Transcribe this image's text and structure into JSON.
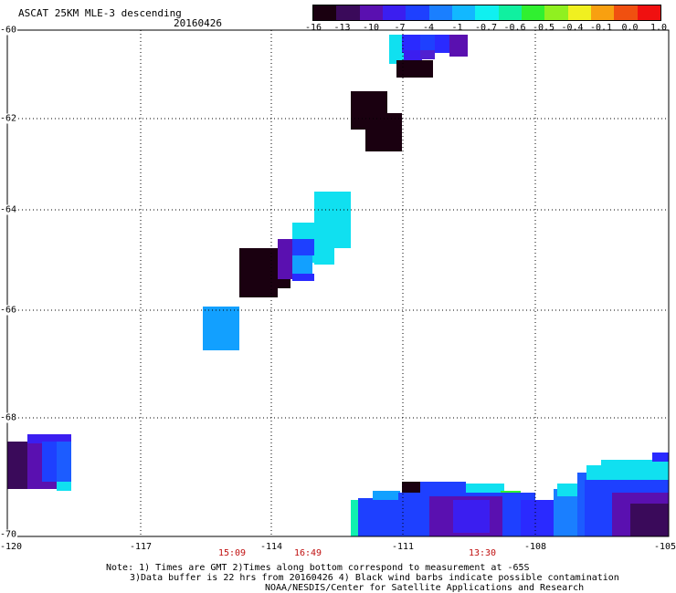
{
  "header": {
    "title": "ASCAT 25KM MLE-3 descending",
    "date": "20160426"
  },
  "colorbar": {
    "labels": [
      "-16",
      "-13",
      "-10",
      "-7",
      "-4",
      "-1",
      "-0.7",
      "-0.6",
      "-0.5",
      "-0.4",
      "-0.1",
      "0.0",
      "1.0"
    ],
    "colors": [
      "#1a0010",
      "#3a0a5a",
      "#5a10b0",
      "#3b1ef0",
      "#1e40ff",
      "#1a7fff",
      "#12b8ff",
      "#10f0f0",
      "#10f0a0",
      "#30f030",
      "#90f020",
      "#f0f020",
      "#f8a010",
      "#f05010",
      "#f01010"
    ]
  },
  "map": {
    "lat_labels": [
      "-60",
      "-62",
      "-64",
      "-66",
      "-68",
      "-70"
    ],
    "lon_labels": [
      "-120",
      "-117",
      "-114",
      "-111",
      "-108",
      "-105"
    ],
    "times": [
      "15:09",
      "16:49",
      "13:30"
    ]
  },
  "footer": {
    "note1": "Note: 1) Times are GMT 2)Times along bottom correspond to measurement at -65S",
    "note2": "3)Data buffer is 22 hrs from 20160426 4) Black wind barbs indicate possible contamination",
    "credit": "NOAA/NESDIS/Center for Satellite Applications and Research"
  }
}
